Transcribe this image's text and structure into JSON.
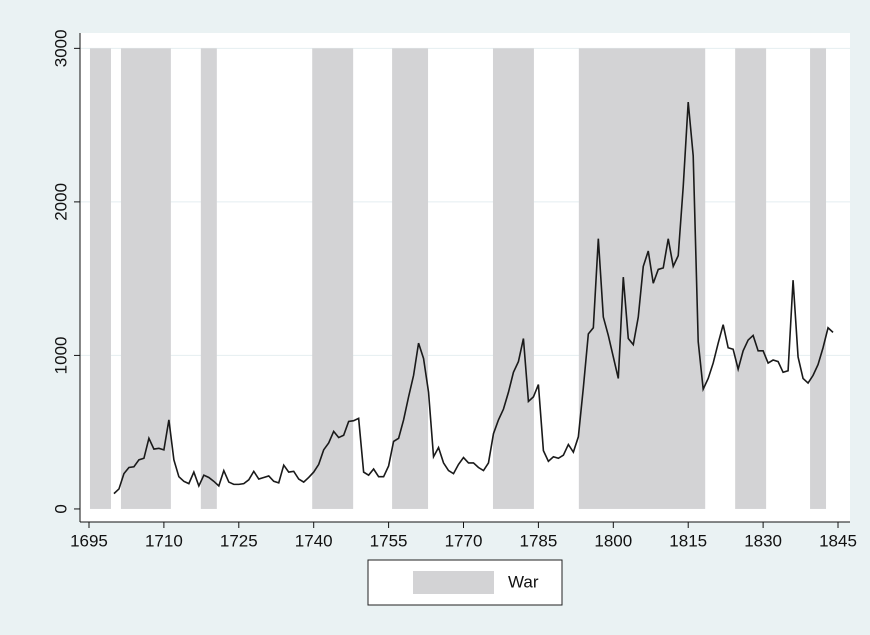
{
  "chart_data": {
    "type": "line",
    "x": [
      1700,
      1701,
      1702,
      1703,
      1704,
      1705,
      1706,
      1707,
      1708,
      1709,
      1710,
      1711,
      1712,
      1713,
      1714,
      1715,
      1716,
      1717,
      1718,
      1719,
      1720,
      1721,
      1722,
      1723,
      1724,
      1725,
      1726,
      1727,
      1728,
      1729,
      1730,
      1731,
      1732,
      1733,
      1734,
      1735,
      1736,
      1737,
      1738,
      1739,
      1740,
      1741,
      1742,
      1743,
      1744,
      1745,
      1746,
      1747,
      1748,
      1749,
      1750,
      1751,
      1752,
      1753,
      1754,
      1755,
      1756,
      1757,
      1758,
      1759,
      1760,
      1761,
      1762,
      1763,
      1764,
      1765,
      1766,
      1767,
      1768,
      1769,
      1770,
      1771,
      1772,
      1773,
      1774,
      1775,
      1776,
      1777,
      1778,
      1779,
      1780,
      1781,
      1782,
      1783,
      1784,
      1785,
      1786,
      1787,
      1788,
      1789,
      1790,
      1791,
      1792,
      1793,
      1794,
      1795,
      1796,
      1797,
      1798,
      1799,
      1800,
      1801,
      1802,
      1803,
      1804,
      1805,
      1806,
      1807,
      1808,
      1809,
      1810,
      1811,
      1812,
      1813,
      1814,
      1815,
      1816,
      1817,
      1818,
      1819,
      1820,
      1821,
      1822,
      1823,
      1824,
      1825,
      1826,
      1827,
      1828,
      1829,
      1830,
      1831,
      1832,
      1833,
      1834,
      1835,
      1836,
      1837,
      1838,
      1839,
      1840,
      1841,
      1842,
      1843,
      1844
    ],
    "line": {
      "color": "#1a1a1a",
      "values": [
        100,
        130,
        230,
        270,
        275,
        320,
        330,
        460,
        390,
        395,
        385,
        580,
        320,
        210,
        180,
        165,
        240,
        150,
        220,
        205,
        180,
        150,
        250,
        175,
        160,
        160,
        165,
        190,
        245,
        195,
        205,
        215,
        180,
        170,
        285,
        240,
        245,
        195,
        175,
        205,
        240,
        290,
        385,
        430,
        505,
        465,
        480,
        570,
        575,
        590,
        240,
        220,
        260,
        210,
        210,
        280,
        440,
        460,
        580,
        730,
        870,
        1080,
        980,
        760,
        340,
        400,
        300,
        250,
        230,
        290,
        335,
        300,
        300,
        270,
        250,
        300,
        490,
        580,
        650,
        760,
        890,
        960,
        1110,
        700,
        730,
        810,
        380,
        310,
        340,
        330,
        350,
        420,
        370,
        470,
        790,
        1140,
        1180,
        1760,
        1250,
        1130,
        990,
        850,
        1510,
        1110,
        1070,
        1250,
        1580,
        1680,
        1470,
        1560,
        1570,
        1760,
        1580,
        1650,
        2100,
        2650,
        2300,
        1090,
        780,
        850,
        950,
        1080,
        1200,
        1050,
        1040,
        910,
        1030,
        1100,
        1130,
        1030,
        1030,
        950,
        970,
        960,
        890,
        900,
        1490,
        990,
        850,
        820,
        870,
        940,
        1050,
        1180,
        1150
      ]
    },
    "war": {
      "name": "War",
      "color": "#d3d3d5",
      "periods": [
        [
          1695.2,
          1699.4
        ],
        [
          1701.4,
          1711.4
        ],
        [
          1717.4,
          1720.6
        ],
        [
          1739.7,
          1747.9
        ],
        [
          1755.7,
          1762.9
        ],
        [
          1775.9,
          1784.1
        ],
        [
          1793.1,
          1818.4
        ],
        [
          1824.4,
          1830.6
        ],
        [
          1839.4,
          1842.6
        ]
      ]
    },
    "xlim": [
      1693.2,
      1847.4
    ],
    "ylim": [
      -85,
      3100
    ],
    "xticks": [
      1695,
      1710,
      1725,
      1740,
      1755,
      1770,
      1785,
      1800,
      1815,
      1830,
      1845
    ],
    "yticks": [
      0,
      1000,
      2000,
      3000
    ],
    "grid": true
  }
}
